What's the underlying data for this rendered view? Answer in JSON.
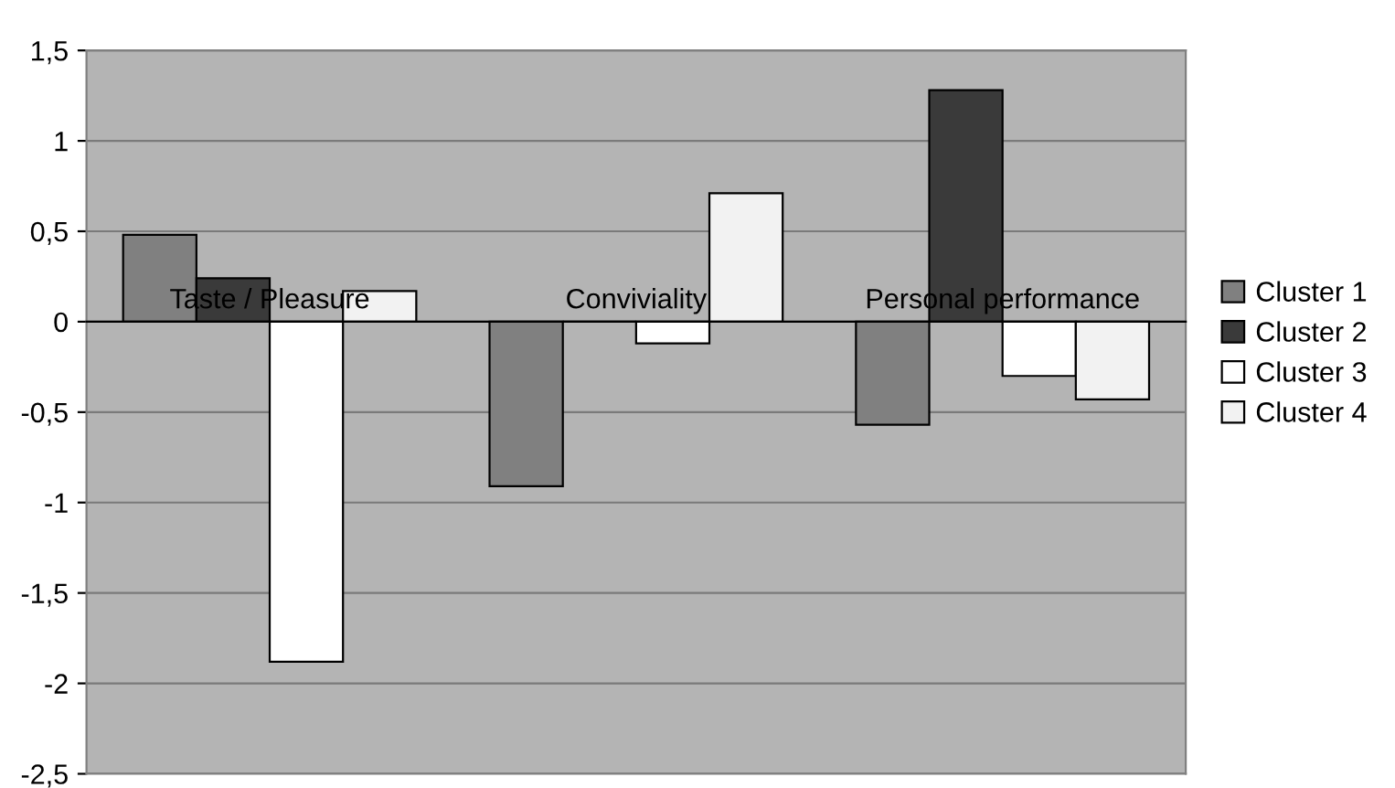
{
  "chart_data": {
    "type": "bar",
    "categories": [
      "Taste / Pleasure",
      "Conviviality",
      "Personal performance"
    ],
    "series": [
      {
        "name": "Cluster 1",
        "color": "#808080",
        "values": [
          0.48,
          -0.91,
          -0.57
        ]
      },
      {
        "name": "Cluster 2",
        "color": "#3a3a3a",
        "values": [
          0.24,
          0,
          1.28
        ]
      },
      {
        "name": "Cluster 3",
        "color": "#ffffff",
        "values": [
          -1.88,
          -0.12,
          -0.3
        ]
      },
      {
        "name": "Cluster 4",
        "color": "#f2f2f2",
        "values": [
          0.17,
          0.71,
          -0.43
        ]
      }
    ],
    "ylim": [
      -2.5,
      1.5
    ],
    "yticks": [
      {
        "value": 1.5,
        "label": "1,5"
      },
      {
        "value": 1,
        "label": "1"
      },
      {
        "value": 0.5,
        "label": "0,5"
      },
      {
        "value": 0,
        "label": "0"
      },
      {
        "value": -0.5,
        "label": "-0,5"
      },
      {
        "value": -1,
        "label": "-1"
      },
      {
        "value": -1.5,
        "label": "-1,5"
      },
      {
        "value": -2,
        "label": "-2"
      },
      {
        "value": -2.5,
        "label": "-2,5"
      }
    ],
    "grid": "y",
    "legend": "right"
  }
}
